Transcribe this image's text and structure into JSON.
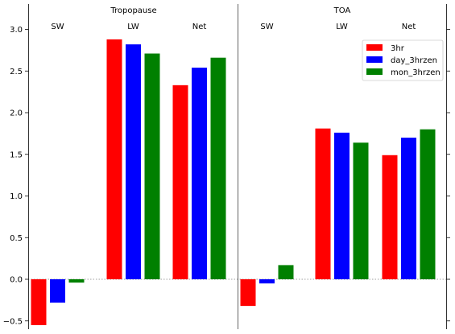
{
  "chart_data": {
    "type": "bar",
    "panels": [
      {
        "title": "Tropopause",
        "categories": [
          "SW",
          "LW",
          "Net"
        ],
        "series": [
          {
            "name": "3hr",
            "color": "#ff0000",
            "values": [
              -0.55,
              2.88,
              2.33
            ]
          },
          {
            "name": "day_3hrzen",
            "color": "#0000ff",
            "values": [
              -0.28,
              2.82,
              2.54
            ]
          },
          {
            "name": "mon_3hrzen",
            "color": "#008000",
            "values": [
              -0.04,
              2.71,
              2.66
            ]
          }
        ]
      },
      {
        "title": "TOA",
        "categories": [
          "SW",
          "LW",
          "Net"
        ],
        "series": [
          {
            "name": "3hr",
            "color": "#ff0000",
            "values": [
              -0.32,
              1.81,
              1.49
            ]
          },
          {
            "name": "day_3hrzen",
            "color": "#0000ff",
            "values": [
              -0.05,
              1.76,
              1.7
            ]
          },
          {
            "name": "mon_3hrzen",
            "color": "#008000",
            "values": [
              0.17,
              1.64,
              1.8
            ]
          }
        ]
      }
    ],
    "ylim": [
      -0.6,
      3.3
    ],
    "yticks": [
      "−0.5",
      "0.0",
      "0.5",
      "1.0",
      "1.5",
      "2.0",
      "2.5",
      "3.0"
    ],
    "ytick_values": [
      -0.5,
      0.0,
      0.5,
      1.0,
      1.5,
      2.0,
      2.5,
      3.0
    ],
    "legend": {
      "position": "upper right",
      "entries": [
        "3hr",
        "day_3hrzen",
        "mon_3hrzen"
      ]
    },
    "zero_line": {
      "style": "dotted",
      "color": "#808080"
    },
    "grid": false
  }
}
